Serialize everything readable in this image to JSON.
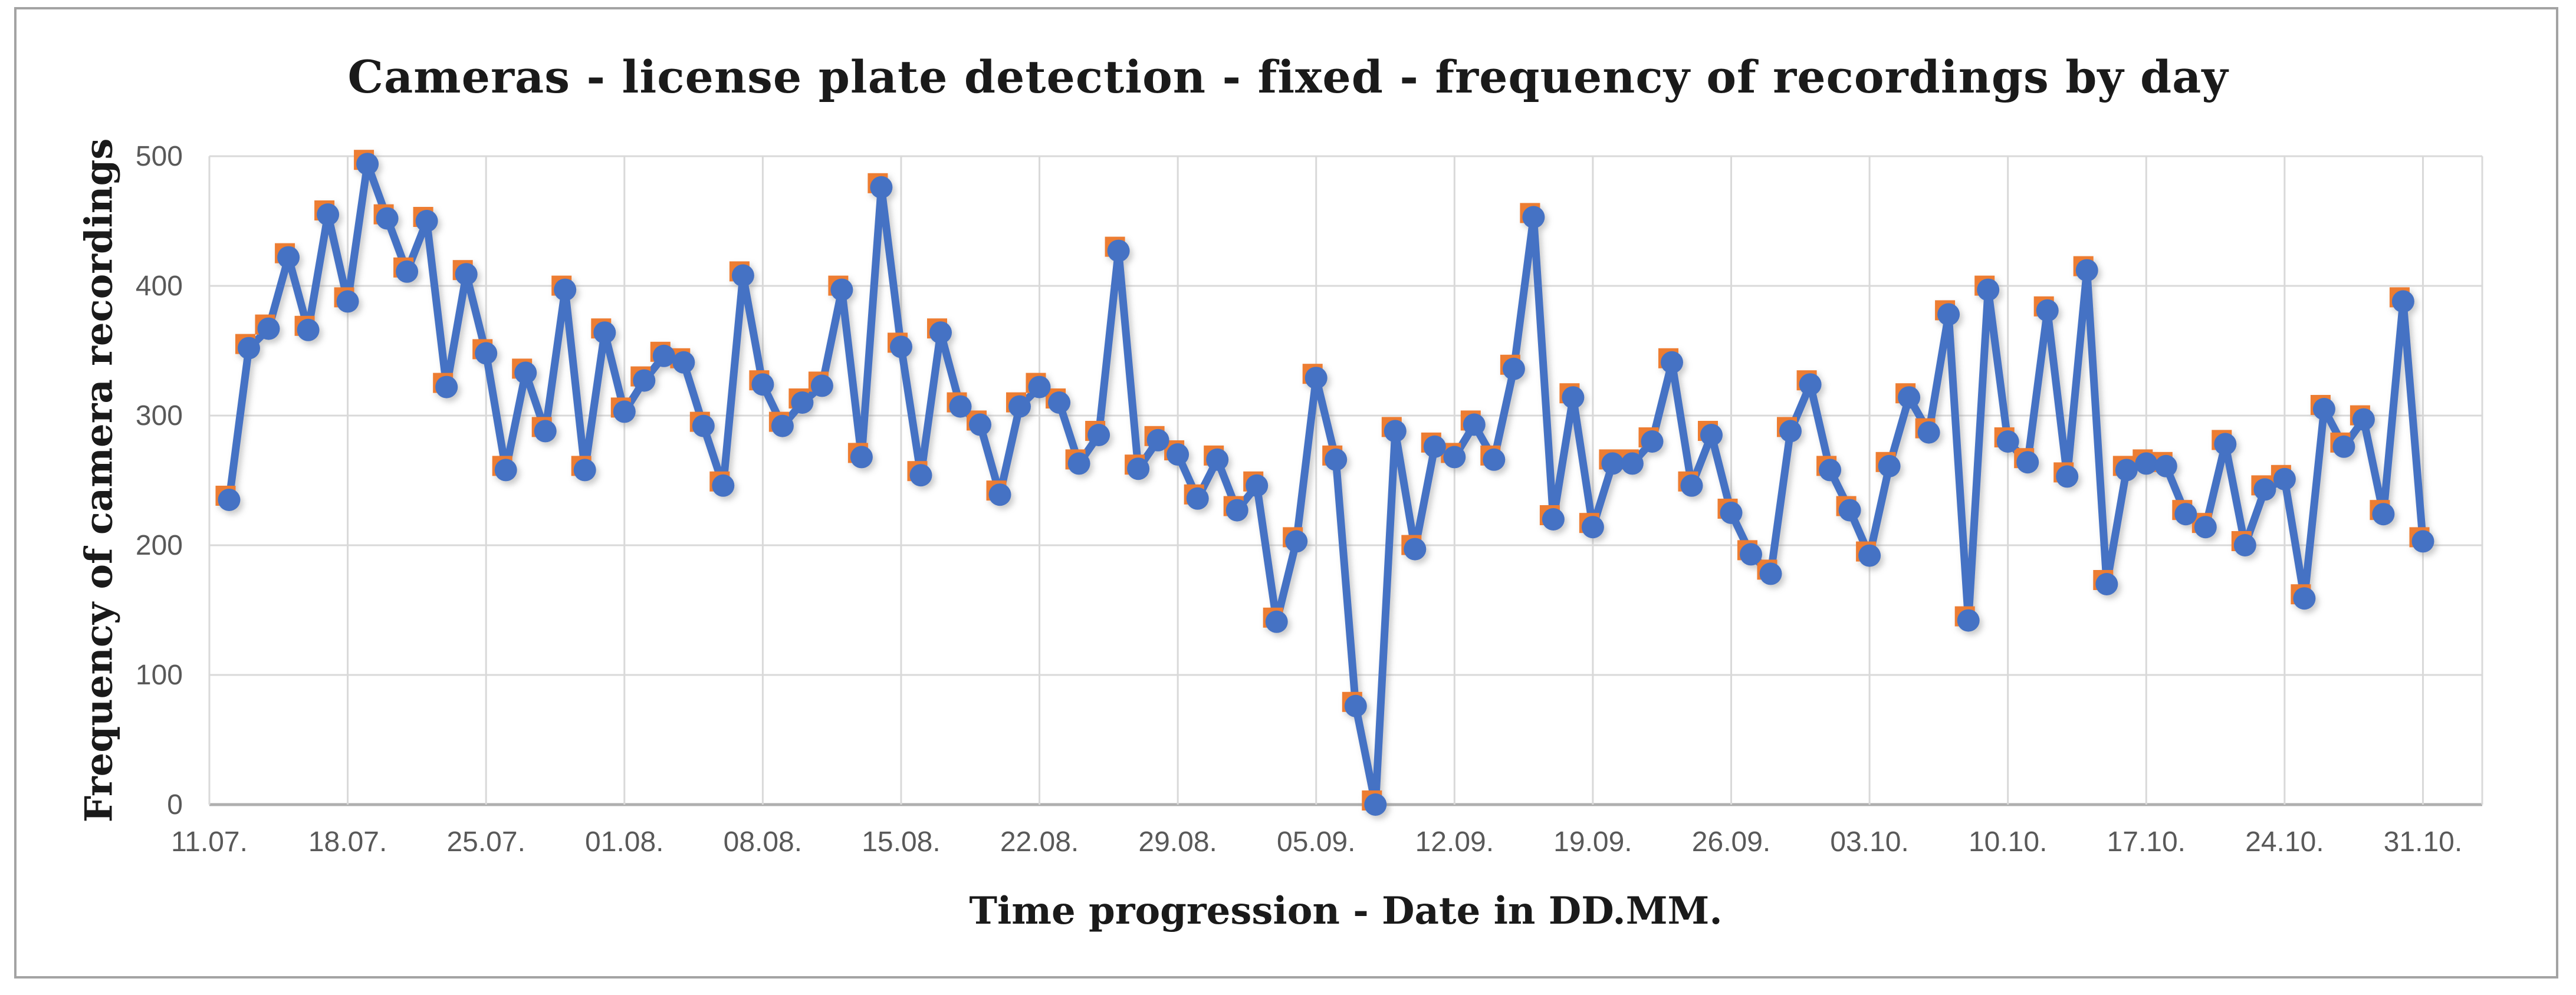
{
  "figure": {
    "background_color": "#ffffff",
    "border_color": "#a3a3a3"
  },
  "chart_data": {
    "type": "line",
    "title": "Cameras - license plate detection - fixed - frequency of recordings by day",
    "xlabel": "Time progression - Date in DD.MM.",
    "ylabel": "Frequency of camera recordings",
    "ylim": [
      0,
      500
    ],
    "yticks": [
      0,
      100,
      200,
      300,
      400,
      500
    ],
    "ytick_labels": [
      "0",
      "100",
      "200",
      "300",
      "400",
      "500"
    ],
    "xtick_labels": [
      "11.07.",
      "18.07.",
      "25.07.",
      "01.08.",
      "08.08.",
      "15.08.",
      "22.08.",
      "29.08.",
      "05.09.",
      "12.09.",
      "19.09.",
      "26.09.",
      "03.10.",
      "10.10.",
      "17.10.",
      "24.10.",
      "31.10."
    ],
    "grid": true,
    "legend_position": "none",
    "axis_start_category": "11.07.",
    "series": [
      {
        "name": "frequency-of-recordings",
        "line_color": "#4472C4",
        "marker": "circle",
        "marker_color": "#4472C4",
        "back_marker": "square",
        "back_marker_color": "#ED7D31",
        "x": [
          "12.07",
          "13.07",
          "14.07",
          "15.07",
          "16.07",
          "17.07",
          "18.07",
          "19.07",
          "20.07",
          "21.07",
          "22.07",
          "23.07",
          "24.07",
          "25.07",
          "26.07",
          "27.07",
          "28.07",
          "29.07",
          "30.07",
          "31.07",
          "01.08",
          "02.08",
          "03.08",
          "04.08",
          "05.08",
          "06.08",
          "07.08",
          "08.08",
          "09.08",
          "10.08",
          "11.08",
          "12.08",
          "13.08",
          "14.08",
          "15.08",
          "16.08",
          "17.08",
          "18.08",
          "19.08",
          "20.08",
          "21.08",
          "22.08",
          "23.08",
          "24.08",
          "25.08",
          "26.08",
          "27.08",
          "28.08",
          "29.08",
          "30.08",
          "31.08",
          "01.09",
          "02.09",
          "03.09",
          "04.09",
          "05.09",
          "06.09",
          "07.09",
          "08.09",
          "09.09",
          "10.09",
          "11.09",
          "12.09",
          "13.09",
          "14.09",
          "15.09",
          "16.09",
          "17.09",
          "18.09",
          "19.09",
          "20.09",
          "21.09",
          "22.09",
          "23.09",
          "24.09",
          "25.09",
          "26.09",
          "27.09",
          "28.09",
          "29.09",
          "30.09",
          "01.10",
          "02.10",
          "03.10",
          "04.10",
          "05.10",
          "06.10",
          "07.10",
          "08.10",
          "09.10",
          "10.10",
          "11.10",
          "12.10",
          "13.10",
          "14.10",
          "15.10",
          "16.10",
          "17.10",
          "18.10",
          "19.10",
          "20.10",
          "21.10",
          "22.10",
          "23.10",
          "24.10",
          "25.10",
          "26.10",
          "27.10",
          "28.10",
          "29.10",
          "30.10",
          "31.10"
        ],
        "values": [
          235,
          352,
          367,
          422,
          366,
          455,
          388,
          494,
          452,
          411,
          450,
          322,
          409,
          348,
          258,
          333,
          288,
          397,
          258,
          364,
          303,
          327,
          346,
          341,
          292,
          246,
          408,
          324,
          292,
          310,
          323,
          397,
          268,
          476,
          353,
          254,
          364,
          307,
          293,
          239,
          307,
          322,
          310,
          263,
          285,
          427,
          259,
          281,
          270,
          236,
          266,
          227,
          246,
          141,
          203,
          329,
          266,
          76,
          0,
          288,
          197,
          276,
          268,
          293,
          266,
          336,
          453,
          220,
          314,
          214,
          263,
          263,
          280,
          341,
          246,
          285,
          225,
          193,
          178,
          288,
          324,
          258,
          227,
          192,
          261,
          314,
          287,
          378,
          142,
          397,
          280,
          264,
          381,
          253,
          412,
          170,
          258,
          263,
          261,
          224,
          214,
          278,
          200,
          243,
          251,
          159,
          305,
          276,
          297,
          224,
          388,
          203
        ]
      }
    ],
    "colors": {
      "gridline": "#D9D9D9",
      "axis_line": "#AFAFAF",
      "tick_label": "#595959",
      "title_text": "#1a1a1a"
    }
  }
}
